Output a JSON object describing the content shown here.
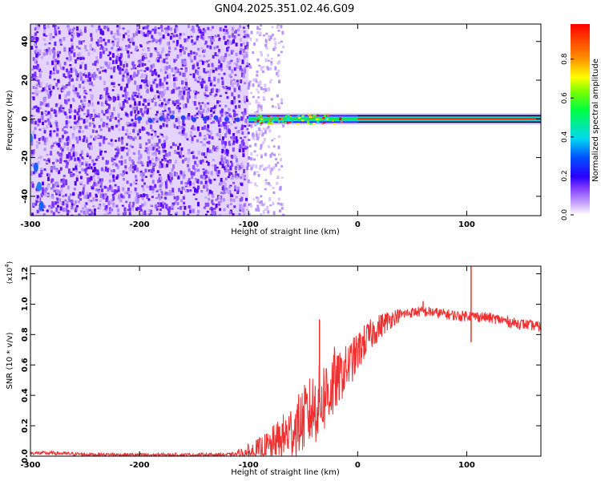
{
  "title": "GN04.2025.351.02.46.G09",
  "chart_data": [
    {
      "type": "heatmap",
      "xlabel": "Height of straight line (km)",
      "ylabel": "Frequency (Hz)",
      "xlim": [
        -300,
        168
      ],
      "ylim": [
        -50,
        49
      ],
      "xticks": [
        -300,
        -200,
        -100,
        0,
        100
      ],
      "yticks": [
        -40,
        -20,
        0,
        20,
        40
      ],
      "colorbar": {
        "label": "Normalized spectral amplitude",
        "range": [
          0.0,
          0.98
        ],
        "ticks": [
          "0.0",
          "0.2",
          "0.4",
          "0.6",
          "0.8"
        ],
        "tick_values": [
          0.0,
          0.2,
          0.4,
          0.6,
          0.8
        ],
        "colors": [
          "#ffffff",
          "#b070ff",
          "#4000ff",
          "#0000ff",
          "#00e0ff",
          "#00ff00",
          "#ffff00",
          "#ff8000",
          "#ff0000"
        ]
      },
      "features": {
        "noise_region_x": [
          -300,
          -100
        ],
        "fade_region_x": [
          -100,
          -75
        ],
        "carrier_start_x": -100,
        "carrier_frequency": 0,
        "carrier_peak_x": [
          -80,
          -30
        ],
        "early_trace": {
          "x": [
            -300,
            -295,
            -292,
            -290
          ],
          "y": [
            -10,
            -25,
            -35,
            -45
          ]
        }
      }
    },
    {
      "type": "line",
      "xlabel": "Height of straight line (km)",
      "ylabel": "SNR (10 * v/v)",
      "y_multiplier": "(x10",
      "y_multiplier_exp": "4",
      "y_multiplier_close": ")",
      "xlim": [
        -300,
        168
      ],
      "ylim": [
        0.0,
        1.25
      ],
      "xticks": [
        -300,
        -200,
        -100,
        0,
        100
      ],
      "yticks": [
        "0.0",
        "0.2",
        "0.4",
        "0.6",
        "0.8",
        "1.0",
        "1.2"
      ],
      "ytick_values": [
        0.0,
        0.2,
        0.4,
        0.6,
        0.8,
        1.0,
        1.2
      ],
      "color": "#ee3030",
      "series": [
        {
          "x": [
            -300,
            -280,
            -250,
            -200,
            -150,
            -120,
            -105,
            -95,
            -85,
            -75,
            -65,
            -55,
            -45,
            -38,
            -32,
            -25,
            -18,
            -10,
            -2,
            5,
            15,
            25,
            35,
            45,
            55,
            65,
            75,
            85,
            95,
            100,
            105,
            110,
            120,
            130,
            140,
            150,
            160,
            168
          ],
          "y": [
            0.02,
            0.02,
            0.012,
            0.008,
            0.008,
            0.01,
            0.015,
            0.025,
            0.04,
            0.08,
            0.14,
            0.2,
            0.28,
            0.33,
            0.38,
            0.45,
            0.5,
            0.58,
            0.66,
            0.74,
            0.82,
            0.88,
            0.92,
            0.94,
            0.95,
            0.95,
            0.94,
            0.93,
            0.92,
            0.93,
            0.92,
            0.92,
            0.91,
            0.9,
            0.88,
            0.87,
            0.86,
            0.85
          ]
        }
      ],
      "spikes": [
        {
          "x": -35,
          "y": 0.9
        },
        {
          "x": 104,
          "y": 1.25
        },
        {
          "x": 104,
          "y": 0.75
        },
        {
          "x": 60,
          "y": 1.02
        }
      ]
    }
  ]
}
